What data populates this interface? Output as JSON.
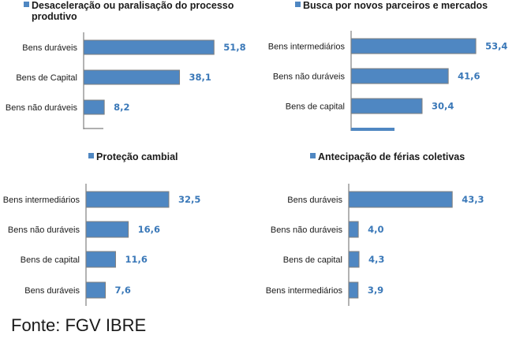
{
  "colors": {
    "bar": "#4f87c2",
    "bar_border": "#7f7f7f",
    "value_label": "#3a78b8",
    "axis": "#808080"
  },
  "chart_data": [
    {
      "type": "bar",
      "orientation": "horizontal",
      "title_line1": "Desaceleração ou paralisação do processo",
      "title_line2": "produtivo",
      "categories": [
        "Bens duráveis",
        "Bens de Capital",
        "Bens não duráveis"
      ],
      "values": [
        51.8,
        38.1,
        8.2
      ],
      "value_labels": [
        "51,8",
        "38,1",
        "8,2"
      ],
      "legend": "top"
    },
    {
      "type": "bar",
      "orientation": "horizontal",
      "title_line1": "Busca por novos parceiros e mercados",
      "categories": [
        "Bens intermediários",
        "Bens não duráveis",
        "Bens de capital"
      ],
      "values": [
        53.4,
        41.6,
        30.4
      ],
      "value_labels": [
        "53,4",
        "41,6",
        "30,4"
      ],
      "legend": "top"
    },
    {
      "type": "bar",
      "orientation": "horizontal",
      "title_line1": "Proteção cambial",
      "categories": [
        "Bens intermediários",
        "Bens não duráveis",
        "Bens de capital",
        "Bens duráveis"
      ],
      "values": [
        32.5,
        16.6,
        11.6,
        7.6
      ],
      "value_labels": [
        "32,5",
        "16,6",
        "11,6",
        "7,6"
      ],
      "legend": "top"
    },
    {
      "type": "bar",
      "orientation": "horizontal",
      "title_line1": "Antecipação de férias coletivas",
      "categories": [
        "Bens duráveis",
        "Bens não duráveis",
        "Bens de capital",
        "Bens intermediários"
      ],
      "values": [
        43.3,
        4.0,
        4.3,
        3.9
      ],
      "value_labels": [
        "43,3",
        "4,0",
        "4,3",
        "3,9"
      ],
      "legend": "top"
    }
  ],
  "source": "Fonte: FGV IBRE"
}
